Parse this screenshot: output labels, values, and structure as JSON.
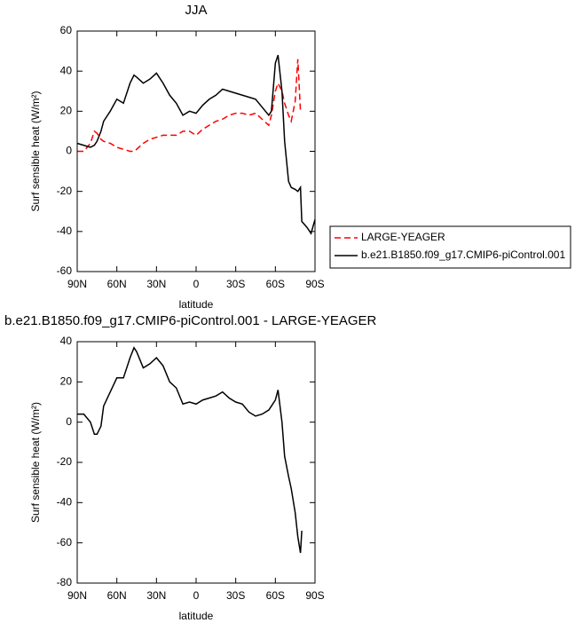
{
  "chart_data": [
    {
      "type": "line",
      "title": "JJA",
      "xlabel": "latitude",
      "ylabel": "Surf sensible heat (W/m²)",
      "x": [
        90,
        85,
        80,
        77,
        75,
        72,
        70,
        65,
        60,
        55,
        50,
        47,
        45,
        40,
        35,
        30,
        25,
        20,
        15,
        10,
        5,
        0,
        -5,
        -10,
        -15,
        -20,
        -25,
        -30,
        -35,
        -40,
        -45,
        -50,
        -55,
        -57,
        -60,
        -62,
        -65,
        -67,
        -70,
        -72,
        -75,
        -77,
        -79,
        -80,
        -84,
        -87,
        -90
      ],
      "xlim": [
        90,
        -90
      ],
      "xticks": [
        {
          "value": 90,
          "label": "90N"
        },
        {
          "value": 60,
          "label": "60N"
        },
        {
          "value": 30,
          "label": "30N"
        },
        0,
        {
          "value": -30,
          "label": "30S"
        },
        {
          "value": -60,
          "label": "60S"
        },
        {
          "value": -90,
          "label": "90S"
        }
      ],
      "ylim": [
        -60,
        60
      ],
      "yticks": [
        -60,
        -40,
        -20,
        0,
        20,
        40,
        60
      ],
      "legend": "right",
      "series": [
        {
          "name": "LARGE-YEAGER",
          "color": "#ff0000",
          "dash": true,
          "values": [
            0,
            0,
            4,
            10,
            9,
            6,
            5,
            4,
            2,
            1,
            0,
            0,
            1,
            4,
            6,
            7,
            8,
            8,
            8,
            10,
            10,
            8,
            11,
            13,
            15,
            16,
            18,
            19,
            19,
            18,
            19,
            16,
            13,
            18,
            30,
            34,
            30,
            24,
            18,
            15,
            25,
            46,
            20,
            null,
            null,
            null,
            null
          ]
        },
        {
          "name": "b.e21.B1850.f09_g17.CMIP6-piControl.001",
          "color": "#000000",
          "dash": false,
          "values": [
            4,
            3,
            2,
            3,
            5,
            10,
            15,
            20,
            26,
            24,
            34,
            38,
            37,
            34,
            36,
            39,
            34,
            28,
            24,
            18,
            20,
            19,
            23,
            26,
            28,
            31,
            30,
            29,
            28,
            27,
            26,
            22,
            18,
            20,
            44,
            48,
            30,
            5,
            -15,
            -18,
            -19,
            -20,
            -18,
            -35,
            -38,
            -41,
            -34
          ]
        }
      ]
    },
    {
      "type": "line",
      "title": "b.e21.B1850.f09_g17.CMIP6-piControl.001 - LARGE-YEAGER",
      "xlabel": "latitude",
      "ylabel": "Surf sensible heat (W/m²)",
      "x": [
        90,
        85,
        80,
        77,
        75,
        72,
        70,
        65,
        60,
        55,
        50,
        47,
        45,
        40,
        35,
        30,
        25,
        20,
        15,
        10,
        5,
        0,
        -5,
        -10,
        -15,
        -20,
        -25,
        -30,
        -35,
        -40,
        -45,
        -50,
        -55,
        -57,
        -60,
        -62,
        -65,
        -67,
        -70,
        -72,
        -75,
        -77,
        -79,
        -80,
        -84,
        -87,
        -90
      ],
      "xlim": [
        90,
        -90
      ],
      "xticks": [
        {
          "value": 90,
          "label": "90N"
        },
        {
          "value": 60,
          "label": "60N"
        },
        {
          "value": 30,
          "label": "30N"
        },
        0,
        {
          "value": -30,
          "label": "30S"
        },
        {
          "value": -60,
          "label": "60S"
        },
        {
          "value": -90,
          "label": "90S"
        }
      ],
      "ylim": [
        -80,
        40
      ],
      "yticks": [
        -80,
        -60,
        -40,
        -20,
        0,
        20,
        40
      ],
      "series": [
        {
          "color": "#000000",
          "dash": false,
          "values": [
            4,
            4,
            0,
            -6,
            -6,
            -2,
            8,
            15,
            22,
            22,
            32,
            37,
            35,
            27,
            29,
            32,
            28,
            20,
            17,
            9,
            10,
            9,
            11,
            12,
            13,
            15,
            12,
            10,
            9,
            5,
            3,
            4,
            6,
            8,
            11,
            16,
            0,
            -17,
            -27,
            -33,
            -45,
            -57,
            -65,
            -54,
            null,
            null,
            null
          ]
        }
      ]
    }
  ]
}
